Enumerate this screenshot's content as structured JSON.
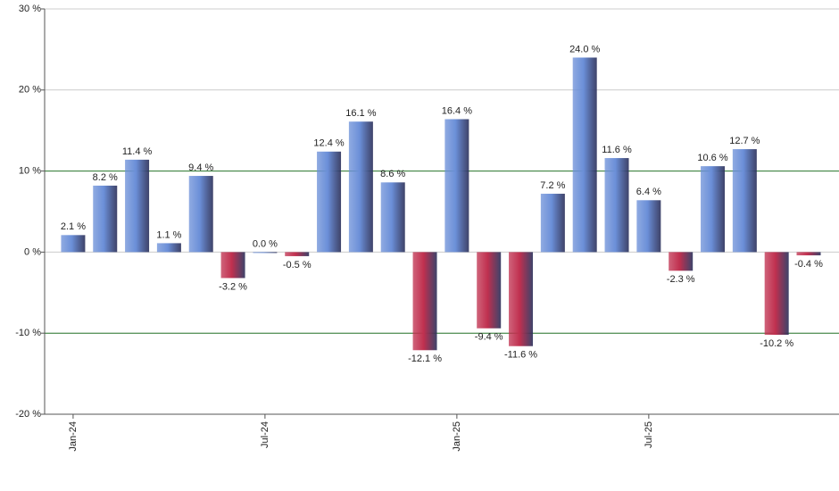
{
  "chart_data": {
    "type": "bar",
    "categories": [
      "Jan-24",
      null,
      null,
      null,
      null,
      null,
      "Jul-24",
      null,
      null,
      null,
      null,
      null,
      "Jan-25",
      null,
      null,
      null,
      null,
      null,
      "Jul-25",
      null,
      null,
      null,
      null,
      null
    ],
    "values": [
      2.1,
      8.2,
      11.4,
      1.1,
      9.4,
      -3.2,
      0.0,
      -0.5,
      12.4,
      16.1,
      8.6,
      -12.1,
      16.4,
      -9.4,
      -11.6,
      7.2,
      24.0,
      11.6,
      6.4,
      -2.3,
      10.6,
      12.7,
      -10.2,
      -0.4
    ],
    "value_labels": [
      "2.1 %",
      "8.2 %",
      "11.4 %",
      "1.1 %",
      "9.4 %",
      "-3.2 %",
      "0.0 %",
      "-0.5 %",
      "12.4 %",
      "16.1 %",
      "8.6 %",
      "-12.1 %",
      "16.4 %",
      "-9.4 %",
      "-11.6 %",
      "7.2 %",
      "24.0 %",
      "11.6 %",
      "6.4 %",
      "-2.3 %",
      "10.6 %",
      "12.7 %",
      "-10.2 %",
      "-0.4 %"
    ],
    "positive_color": "#6b8fd8",
    "negative_color": "#c0304f",
    "ylim": [
      -20,
      30
    ],
    "yticks": [
      {
        "value": -20,
        "label": "-20 %"
      },
      {
        "value": -10,
        "label": "-10 %"
      },
      {
        "value": 0,
        "label": "0 %"
      },
      {
        "value": 10,
        "label": "10 %"
      },
      {
        "value": 20,
        "label": "20 %"
      },
      {
        "value": 30,
        "label": "30 %"
      }
    ],
    "grid": true,
    "reference_lines": {
      "values": [
        10,
        -10
      ],
      "color": "#2e7d32"
    }
  }
}
